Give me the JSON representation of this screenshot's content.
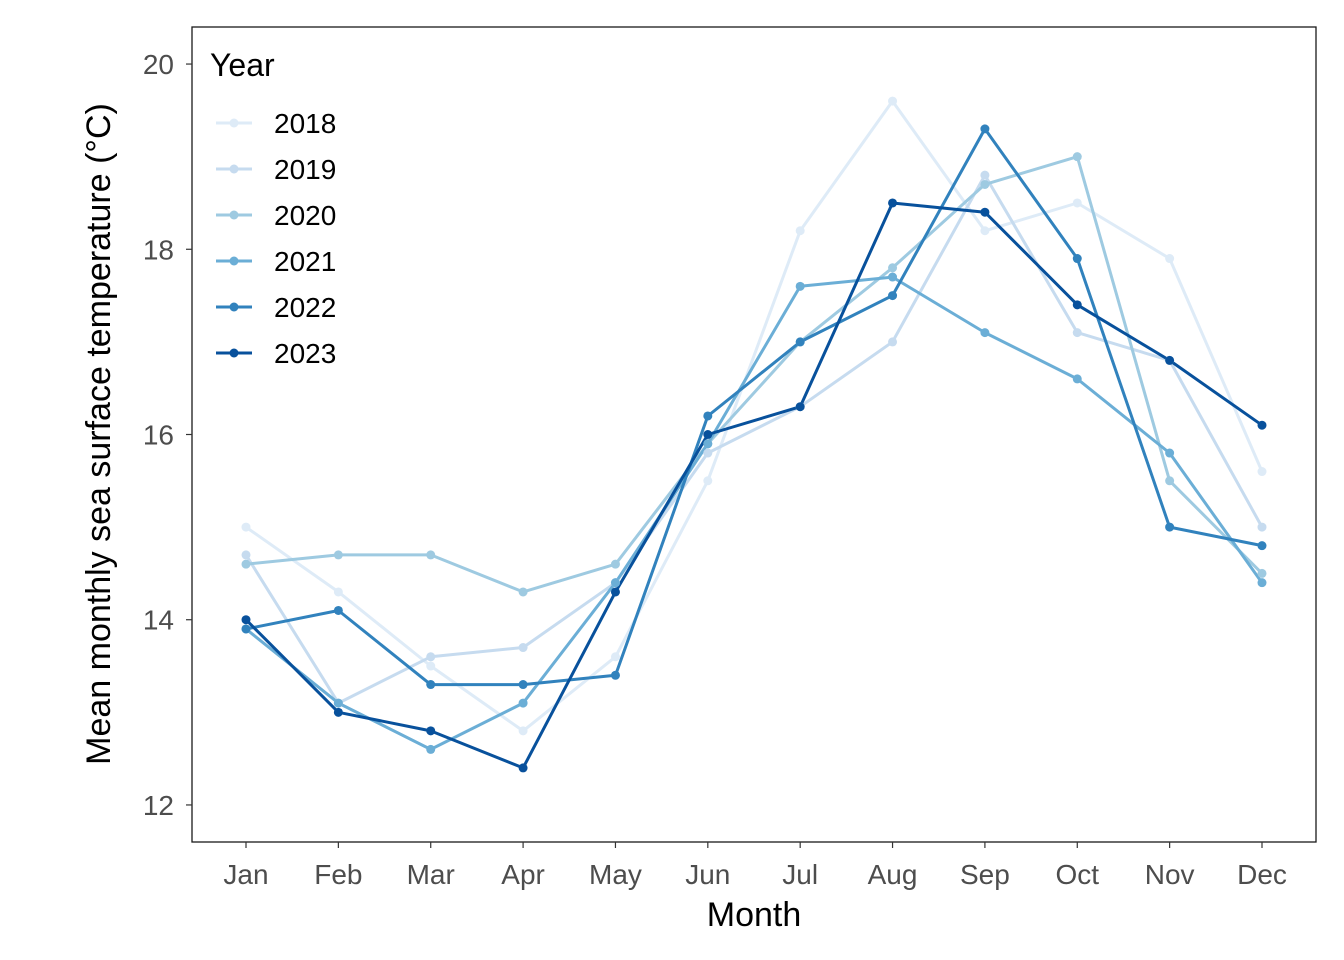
{
  "chart_data": {
    "type": "line",
    "title": "",
    "xlabel": "Month",
    "ylabel": "Mean monthly sea surface temperature (°C)",
    "categories": [
      "Jan",
      "Feb",
      "Mar",
      "Apr",
      "May",
      "Jun",
      "Jul",
      "Aug",
      "Sep",
      "Oct",
      "Nov",
      "Dec"
    ],
    "yticks": [
      12,
      14,
      16,
      18,
      20
    ],
    "ylim": [
      11.6,
      20.4
    ],
    "grid": false,
    "legend": {
      "title": "Year",
      "position": "top-left inside"
    },
    "series": [
      {
        "name": "2018",
        "color": "#deebf7",
        "values": [
          15.0,
          14.3,
          13.5,
          12.8,
          13.6,
          15.5,
          18.2,
          19.6,
          18.2,
          18.5,
          17.9,
          15.6
        ]
      },
      {
        "name": "2019",
        "color": "#c6dbef",
        "values": [
          14.7,
          13.1,
          13.6,
          13.7,
          14.4,
          15.8,
          16.3,
          17.0,
          18.8,
          17.1,
          16.8,
          15.0
        ]
      },
      {
        "name": "2020",
        "color": "#9ecae1",
        "values": [
          14.6,
          14.7,
          14.7,
          14.3,
          14.6,
          15.9,
          17.0,
          17.8,
          18.7,
          19.0,
          15.5,
          14.5
        ]
      },
      {
        "name": "2021",
        "color": "#6baed6",
        "values": [
          13.9,
          13.1,
          12.6,
          13.1,
          14.4,
          15.9,
          17.6,
          17.7,
          17.1,
          16.6,
          15.8,
          14.4
        ]
      },
      {
        "name": "2022",
        "color": "#3182bd",
        "values": [
          13.9,
          14.1,
          13.3,
          13.3,
          13.4,
          16.2,
          17.0,
          17.5,
          19.3,
          17.9,
          15.0,
          14.8
        ]
      },
      {
        "name": "2023",
        "color": "#08519c",
        "values": [
          14.0,
          13.0,
          12.8,
          12.4,
          14.3,
          16.0,
          16.3,
          18.5,
          18.4,
          17.4,
          16.8,
          16.1
        ]
      }
    ]
  }
}
